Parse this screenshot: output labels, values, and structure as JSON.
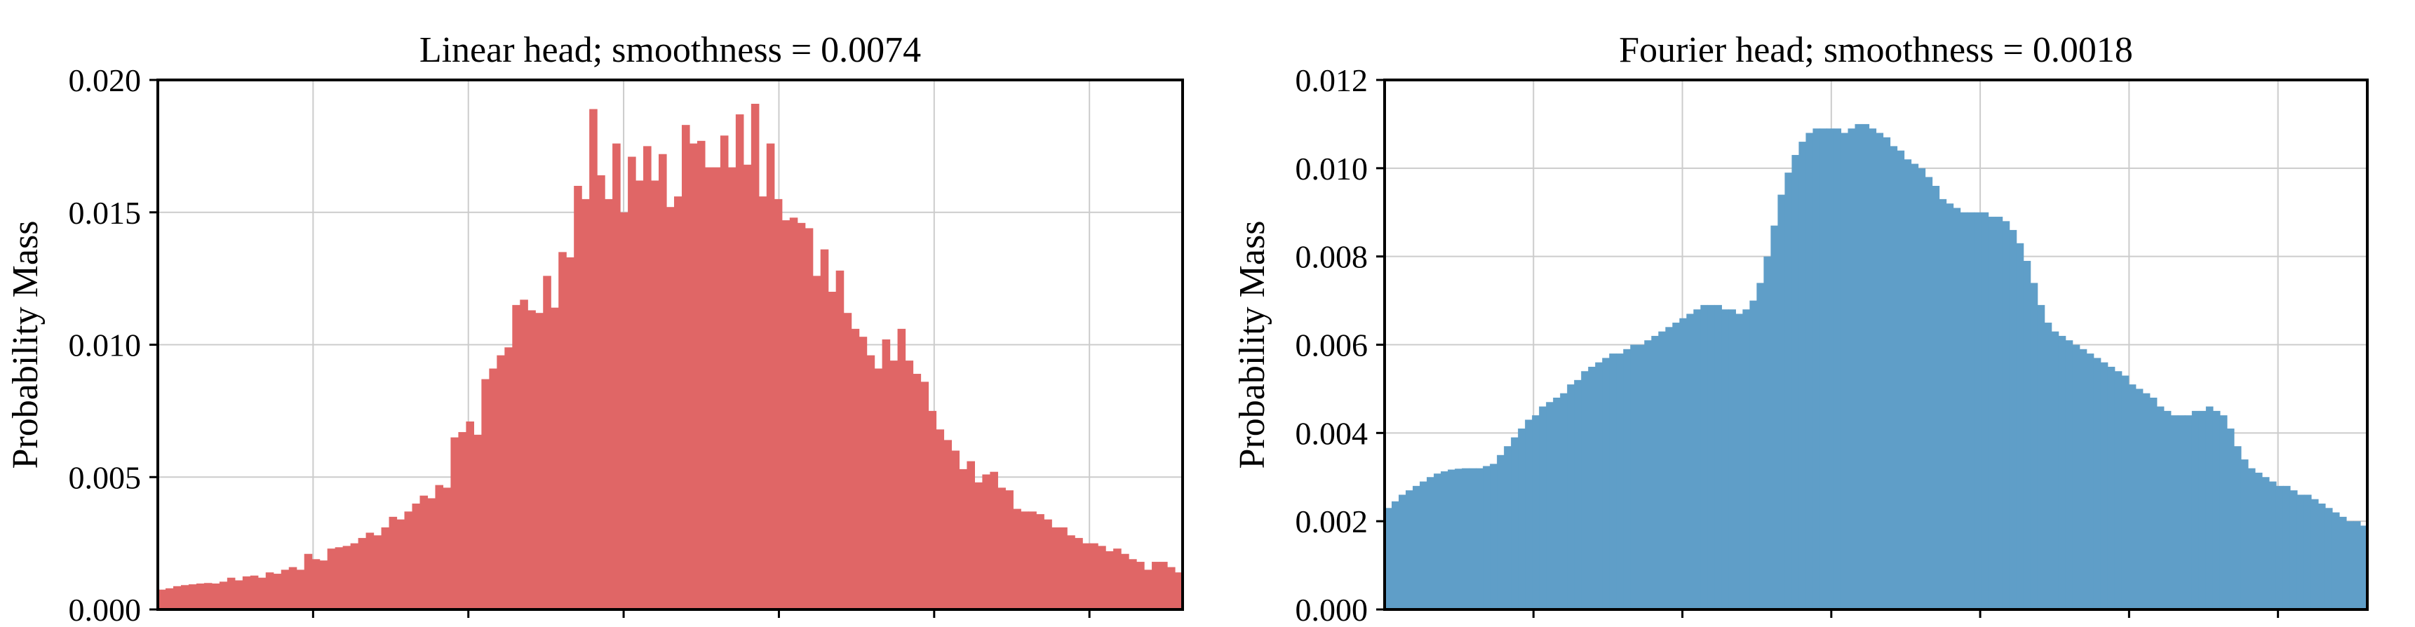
{
  "chart_data": [
    {
      "type": "bar",
      "title": "Linear head; smoothness = 0.0074",
      "xlabel": "",
      "ylabel": "Probability Mass",
      "ylim": [
        0,
        0.02
      ],
      "yticks": [
        "0.000",
        "0.005",
        "0.010",
        "0.015",
        "0.020"
      ],
      "ytick_values": [
        0,
        0.005,
        0.01,
        0.015,
        0.02
      ],
      "xtick_count": 6,
      "grid": true,
      "color": "#e06666",
      "values": [
        0.00075,
        0.0008,
        0.00088,
        0.00092,
        0.00095,
        0.00098,
        0.001,
        0.00098,
        0.00105,
        0.0012,
        0.0011,
        0.00125,
        0.00128,
        0.0012,
        0.0014,
        0.00135,
        0.0015,
        0.0016,
        0.0015,
        0.0021,
        0.0019,
        0.00185,
        0.0023,
        0.00235,
        0.0024,
        0.0025,
        0.0027,
        0.0029,
        0.0028,
        0.0031,
        0.0035,
        0.0034,
        0.0037,
        0.004,
        0.0043,
        0.0042,
        0.0047,
        0.0046,
        0.0065,
        0.0067,
        0.0071,
        0.0066,
        0.0087,
        0.0091,
        0.0096,
        0.0099,
        0.0115,
        0.0117,
        0.0113,
        0.0112,
        0.0126,
        0.0114,
        0.0135,
        0.0133,
        0.016,
        0.0155,
        0.0189,
        0.0164,
        0.0155,
        0.0176,
        0.015,
        0.0171,
        0.0162,
        0.0175,
        0.0162,
        0.0172,
        0.0152,
        0.0156,
        0.0183,
        0.0176,
        0.0177,
        0.0167,
        0.0167,
        0.0179,
        0.0167,
        0.0187,
        0.0168,
        0.0191,
        0.0156,
        0.0176,
        0.0155,
        0.0147,
        0.0148,
        0.0146,
        0.0144,
        0.0126,
        0.0136,
        0.012,
        0.0128,
        0.0112,
        0.0106,
        0.0103,
        0.0096,
        0.0091,
        0.0102,
        0.0094,
        0.0106,
        0.0094,
        0.0089,
        0.0086,
        0.0075,
        0.0068,
        0.0064,
        0.006,
        0.0053,
        0.0056,
        0.0048,
        0.0051,
        0.0052,
        0.0046,
        0.0045,
        0.0038,
        0.0037,
        0.0037,
        0.0036,
        0.0034,
        0.0031,
        0.0031,
        0.0028,
        0.0027,
        0.0025,
        0.0025,
        0.0024,
        0.0022,
        0.0023,
        0.0021,
        0.0019,
        0.0018,
        0.0015,
        0.0018,
        0.0018,
        0.0016,
        0.0014
      ]
    },
    {
      "type": "bar",
      "title": "Fourier head; smoothness = 0.0018",
      "xlabel": "",
      "ylabel": "Probability Mass",
      "ylim": [
        0,
        0.012
      ],
      "yticks": [
        "0.000",
        "0.002",
        "0.004",
        "0.006",
        "0.008",
        "0.010",
        "0.012"
      ],
      "ytick_values": [
        0,
        0.002,
        0.004,
        0.006,
        0.008,
        0.01,
        0.012
      ],
      "xtick_count": 6,
      "grid": true,
      "color": "#5f9ec8",
      "values": [
        0.0023,
        0.00245,
        0.0026,
        0.0027,
        0.0028,
        0.0029,
        0.003,
        0.00308,
        0.00313,
        0.00317,
        0.00319,
        0.0032,
        0.0032,
        0.0032,
        0.00325,
        0.0033,
        0.0035,
        0.0037,
        0.0039,
        0.0041,
        0.0043,
        0.0044,
        0.0046,
        0.0047,
        0.0048,
        0.0049,
        0.0051,
        0.0052,
        0.0054,
        0.0055,
        0.0056,
        0.0057,
        0.0058,
        0.0058,
        0.0059,
        0.006,
        0.006,
        0.0061,
        0.0062,
        0.0063,
        0.0064,
        0.0065,
        0.0066,
        0.0067,
        0.0068,
        0.0069,
        0.0069,
        0.0069,
        0.0068,
        0.0068,
        0.0067,
        0.0068,
        0.007,
        0.0074,
        0.008,
        0.0087,
        0.0094,
        0.0099,
        0.0103,
        0.0106,
        0.0108,
        0.0109,
        0.0109,
        0.0109,
        0.0109,
        0.0108,
        0.0109,
        0.011,
        0.011,
        0.0109,
        0.0108,
        0.0107,
        0.0105,
        0.0104,
        0.0102,
        0.0101,
        0.01,
        0.0098,
        0.0096,
        0.0093,
        0.0092,
        0.0091,
        0.009,
        0.009,
        0.009,
        0.009,
        0.0089,
        0.0089,
        0.0088,
        0.0086,
        0.0083,
        0.0079,
        0.0074,
        0.0069,
        0.0065,
        0.0063,
        0.0062,
        0.0061,
        0.006,
        0.0059,
        0.0058,
        0.0057,
        0.0056,
        0.0055,
        0.0054,
        0.0053,
        0.0051,
        0.005,
        0.0049,
        0.0048,
        0.0046,
        0.0045,
        0.0044,
        0.0044,
        0.0044,
        0.0045,
        0.0045,
        0.0046,
        0.0045,
        0.0044,
        0.0041,
        0.0037,
        0.0034,
        0.0032,
        0.0031,
        0.003,
        0.0029,
        0.0028,
        0.0028,
        0.0027,
        0.0026,
        0.0026,
        0.0025,
        0.0024,
        0.0023,
        0.0022,
        0.0021,
        0.002,
        0.002,
        0.0019
      ]
    }
  ]
}
